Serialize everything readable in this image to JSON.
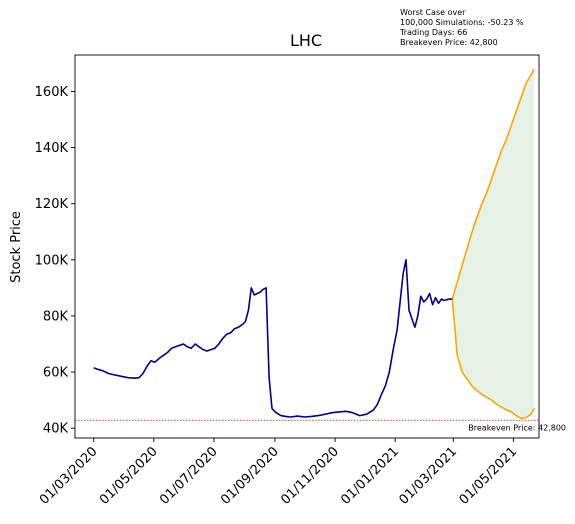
{
  "chart_data": {
    "type": "line",
    "title": "LHC",
    "xlabel": "",
    "ylabel": "Stock Price",
    "y_tick_labels": [
      "40K",
      "60K",
      "80K",
      "100K",
      "120K",
      "140K",
      "160K"
    ],
    "y_ticks": [
      40000,
      60000,
      80000,
      100000,
      120000,
      140000,
      160000
    ],
    "ylim": [
      36500,
      173000
    ],
    "x_tick_labels": [
      "01/03/2020",
      "01/05/2020",
      "01/07/2020",
      "01/09/2020",
      "01/11/2020",
      "01/01/2021",
      "01/03/2021",
      "01/05/2021"
    ],
    "x_ticks": [
      "2020-03-01",
      "2020-05-01",
      "2020-07-01",
      "2020-09-01",
      "2020-11-01",
      "2021-01-01",
      "2021-03-01",
      "2021-05-01"
    ],
    "xlim": [
      "2020-02-11",
      "2021-05-27"
    ],
    "grid": false,
    "annotation_lines": [
      "Worst Case over",
      "100,000 Simulations: -50.23 %",
      "Trading Days: 66",
      "Breakeven Price: 42,800"
    ],
    "breakeven": {
      "value": 42800,
      "label": "Breakeven Price: 42,800",
      "color": "#c0392b"
    },
    "colors": {
      "history": "#00008b",
      "projection": "#ffa500",
      "band_fill": "#e6f2e6"
    },
    "series": [
      {
        "role": "history",
        "x": [
          "2020-03-01",
          "2020-03-05",
          "2020-03-10",
          "2020-03-16",
          "2020-03-22",
          "2020-03-29",
          "2020-04-05",
          "2020-04-12",
          "2020-04-16",
          "2020-04-20",
          "2020-04-24",
          "2020-04-28",
          "2020-05-02",
          "2020-05-07",
          "2020-05-11",
          "2020-05-15",
          "2020-05-19",
          "2020-05-23",
          "2020-05-27",
          "2020-05-31",
          "2020-06-04",
          "2020-06-08",
          "2020-06-12",
          "2020-06-16",
          "2020-06-20",
          "2020-06-24",
          "2020-06-28",
          "2020-07-02",
          "2020-07-06",
          "2020-07-10",
          "2020-07-14",
          "2020-07-18",
          "2020-07-22",
          "2020-07-26",
          "2020-07-30",
          "2020-08-02",
          "2020-08-05",
          "2020-08-08",
          "2020-08-11",
          "2020-08-14",
          "2020-08-17",
          "2020-08-20",
          "2020-08-23",
          "2020-08-26",
          "2020-08-29",
          "2020-09-02",
          "2020-09-07",
          "2020-09-12",
          "2020-09-17",
          "2020-09-24",
          "2020-10-01",
          "2020-10-08",
          "2020-10-15",
          "2020-10-22",
          "2020-10-29",
          "2020-11-05",
          "2020-11-12",
          "2020-11-19",
          "2020-11-26",
          "2020-12-03",
          "2020-12-10",
          "2020-12-14",
          "2020-12-18",
          "2020-12-22",
          "2020-12-26",
          "2020-12-30",
          "2021-01-03",
          "2021-01-06",
          "2021-01-09",
          "2021-01-12",
          "2021-01-15",
          "2021-01-18",
          "2021-01-21",
          "2021-01-24",
          "2021-01-27",
          "2021-01-30",
          "2021-02-02",
          "2021-02-05",
          "2021-02-08",
          "2021-02-11",
          "2021-02-14",
          "2021-02-17",
          "2021-02-20",
          "2021-02-24",
          "2021-02-28"
        ],
        "y": [
          61500,
          61000,
          60500,
          59500,
          59000,
          58500,
          58000,
          57800,
          58000,
          59500,
          62000,
          64000,
          63500,
          65000,
          66000,
          67000,
          68500,
          69000,
          69500,
          70000,
          69000,
          68500,
          70000,
          69000,
          68000,
          67500,
          68000,
          68500,
          70000,
          72000,
          73500,
          74000,
          75500,
          76000,
          77000,
          78000,
          82000,
          90000,
          87500,
          88000,
          88500,
          89500,
          90000,
          58000,
          47000,
          45500,
          44500,
          44200,
          44000,
          44300,
          44000,
          44200,
          44500,
          45000,
          45500,
          45800,
          46000,
          45500,
          44500,
          45000,
          46500,
          48500,
          52000,
          55000,
          60000,
          68000,
          75000,
          85000,
          95000,
          100000,
          82000,
          79000,
          76000,
          80000,
          87000,
          85000,
          86000,
          88000,
          84000,
          86500,
          84500,
          86000,
          85500,
          86000,
          86000
        ],
        "name": ""
      },
      {
        "role": "upper",
        "x": [
          "2021-02-28",
          "2021-03-05",
          "2021-03-10",
          "2021-03-15",
          "2021-03-20",
          "2021-03-25",
          "2021-03-30",
          "2021-04-04",
          "2021-04-09",
          "2021-04-14",
          "2021-04-19",
          "2021-04-24",
          "2021-04-29",
          "2021-05-04",
          "2021-05-09",
          "2021-05-14",
          "2021-05-19",
          "2021-05-22"
        ],
        "y": [
          86000,
          92000,
          98000,
          104000,
          110000,
          115000,
          120000,
          124000,
          129000,
          134000,
          139000,
          143000,
          148000,
          153000,
          158000,
          163000,
          166000,
          168000
        ],
        "name": ""
      },
      {
        "role": "lower",
        "x": [
          "2021-02-28",
          "2021-03-05",
          "2021-03-10",
          "2021-03-15",
          "2021-03-20",
          "2021-03-25",
          "2021-03-30",
          "2021-04-04",
          "2021-04-09",
          "2021-04-14",
          "2021-04-19",
          "2021-04-24",
          "2021-04-29",
          "2021-05-04",
          "2021-05-09",
          "2021-05-14",
          "2021-05-19",
          "2021-05-22"
        ],
        "y": [
          86000,
          66000,
          60000,
          57500,
          55000,
          53500,
          52000,
          51000,
          50000,
          48500,
          47500,
          46500,
          45800,
          44500,
          43500,
          43800,
          45000,
          47000
        ],
        "name": ""
      }
    ]
  }
}
